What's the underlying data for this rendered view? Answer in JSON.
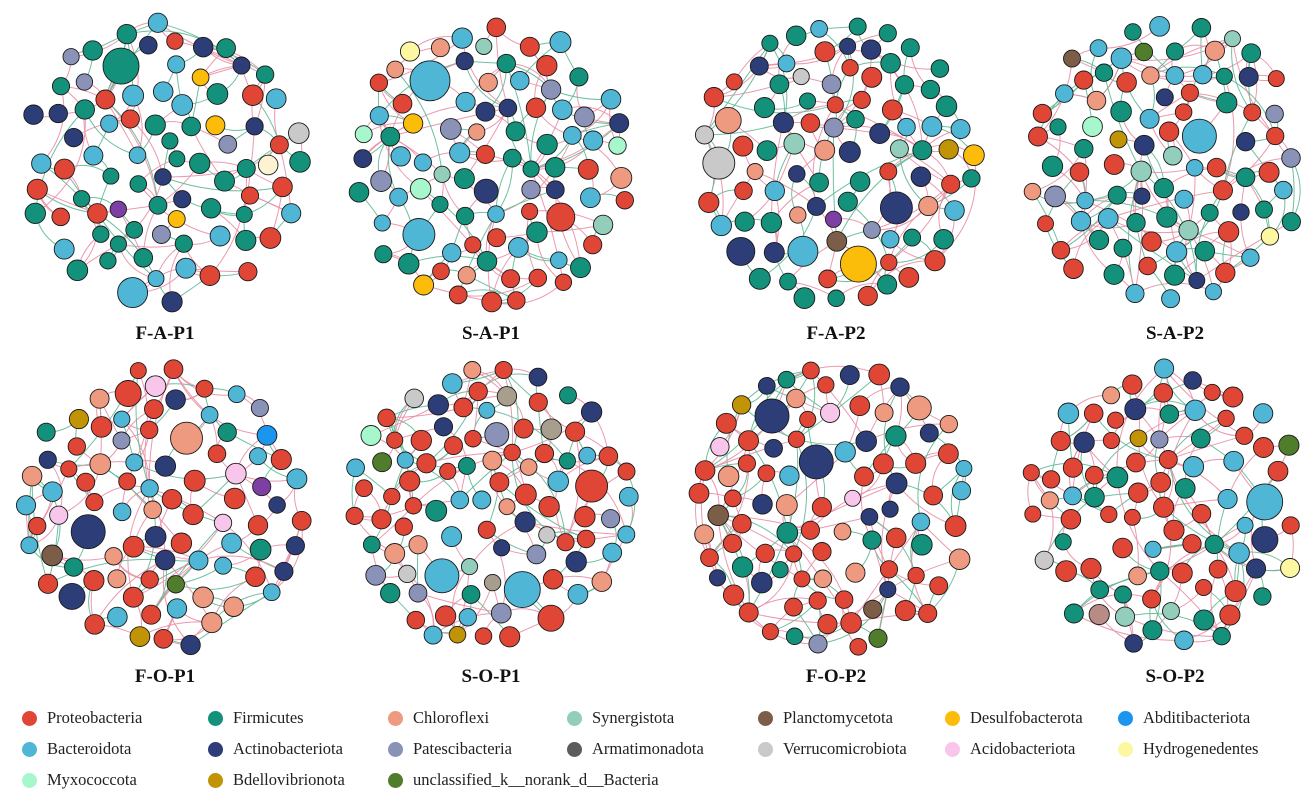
{
  "colors": {
    "Proteobacteria": "#e04636",
    "Firmicutes": "#13917a",
    "Chloroflexi": "#ee9a80",
    "Synergistota": "#93cdbc",
    "Planctomycetota": "#7c5d47",
    "Desulfobacterota": "#fbbd0a",
    "Abditibacteriota": "#1c95ee",
    "Bacteroidota": "#4fb6d6",
    "Actinobacteriota": "#2d3d78",
    "Patescibacteria": "#8a93b7",
    "Armatimonadota": "#5c5c5c",
    "Verrucomicrobiota": "#c9c9c9",
    "Acidobacteriota": "#f7c6ea",
    "Hydrogenedentes": "#fcf7a0",
    "Myxococcota": "#a7f7cd",
    "Bdellovibrionota": "#c19405",
    "unclassified_k__norank_d__Bacteria": "#4f7d2c",
    "others": "#7e3fa5",
    "cream": "#fdf2d2",
    "taupe": "#a89e8e",
    "mauve": "#b98b85",
    "edge_positive": "#e98ea6",
    "edge_negative": "#5fb996"
  },
  "legend": [
    {
      "name": "Proteobacteria",
      "color_key": "Proteobacteria"
    },
    {
      "name": "Firmicutes",
      "color_key": "Firmicutes"
    },
    {
      "name": "Chloroflexi",
      "color_key": "Chloroflexi"
    },
    {
      "name": "Synergistota",
      "color_key": "Synergistota"
    },
    {
      "name": "Planctomycetota",
      "color_key": "Planctomycetota"
    },
    {
      "name": "Desulfobacterota",
      "color_key": "Desulfobacterota"
    },
    {
      "name": "Abditibacteriota",
      "color_key": "Abditibacteriota"
    },
    {
      "name": "Bacteroidota",
      "color_key": "Bacteroidota"
    },
    {
      "name": "Actinobacteriota",
      "color_key": "Actinobacteriota"
    },
    {
      "name": "Patescibacteria",
      "color_key": "Patescibacteria"
    },
    {
      "name": "Armatimonadota",
      "color_key": "Armatimonadota"
    },
    {
      "name": "Verrucomicrobiota",
      "color_key": "Verrucomicrobiota"
    },
    {
      "name": "Acidobacteriota",
      "color_key": "Acidobacteriota"
    },
    {
      "name": "Hydrogenedentes",
      "color_key": "Hydrogenedentes"
    },
    {
      "name": "Myxococcota",
      "color_key": "Myxococcota"
    },
    {
      "name": "Bdellovibrionota",
      "color_key": "Bdellovibrionota"
    },
    {
      "name": "unclassified_k__norank_d__Bacteria",
      "color_key": "unclassified_k__norank_d__Bacteria"
    }
  ],
  "networks": [
    {
      "label": "F-A-P1",
      "mix": {
        "Firmicutes": 30,
        "Bacteroidota": 15,
        "Proteobacteria": 14,
        "Actinobacteriota": 10,
        "Patescibacteria": 4,
        "Desulfobacterota": 3,
        "Verrucomicrobiota": 1,
        "cream": 1,
        "others": 1
      },
      "big": [
        {
          "ck": "Firmicutes",
          "r": 18
        },
        {
          "ck": "Bacteroidota",
          "r": 15
        }
      ]
    },
    {
      "label": "S-A-P1",
      "mix": {
        "Bacteroidota": 20,
        "Firmicutes": 18,
        "Proteobacteria": 20,
        "Actinobacteriota": 8,
        "Chloroflexi": 6,
        "Patescibacteria": 5,
        "Synergistota": 3,
        "Myxococcota": 3,
        "Desulfobacterota": 2,
        "Hydrogenedentes": 1
      },
      "big": [
        {
          "ck": "Bacteroidota",
          "r": 20
        },
        {
          "ck": "Bacteroidota",
          "r": 16
        },
        {
          "ck": "Proteobacteria",
          "r": 14
        },
        {
          "ck": "Actinobacteriota",
          "r": 12
        }
      ]
    },
    {
      "label": "F-A-P2",
      "mix": {
        "Firmicutes": 30,
        "Proteobacteria": 20,
        "Bacteroidota": 10,
        "Actinobacteriota": 10,
        "Chloroflexi": 4,
        "Patescibacteria": 3,
        "Synergistota": 2,
        "Verrucomicrobiota": 2,
        "Planctomycetota": 1,
        "Desulfobacterota": 2,
        "Bdellovibrionota": 1,
        "others": 1
      },
      "big": [
        {
          "ck": "Desulfobacterota",
          "r": 18
        },
        {
          "ck": "Actinobacteriota",
          "r": 16
        },
        {
          "ck": "Verrucomicrobiota",
          "r": 16
        },
        {
          "ck": "Bacteroidota",
          "r": 15
        },
        {
          "ck": "Chloroflexi",
          "r": 13
        },
        {
          "ck": "Actinobacteriota",
          "r": 14
        }
      ]
    },
    {
      "label": "S-A-P2",
      "mix": {
        "Firmicutes": 25,
        "Proteobacteria": 22,
        "Bacteroidota": 18,
        "Actinobacteriota": 8,
        "Synergistota": 5,
        "Chloroflexi": 4,
        "Patescibacteria": 3,
        "Planctomycetota": 1,
        "unclassified_k__norank_d__Bacteria": 1,
        "Hydrogenedentes": 1,
        "Bdellovibrionota": 1,
        "Myxococcota": 1
      },
      "big": [
        {
          "ck": "Bacteroidota",
          "r": 17
        }
      ]
    },
    {
      "label": "F-O-P1",
      "mix": {
        "Proteobacteria": 35,
        "Bacteroidota": 18,
        "Chloroflexi": 10,
        "Actinobacteriota": 10,
        "Firmicutes": 4,
        "Acidobacteriota": 4,
        "Bdellovibrionota": 2,
        "Patescibacteria": 2,
        "Planctomycetota": 1,
        "unclassified_k__norank_d__Bacteria": 1,
        "Abditibacteriota": 1,
        "others": 1
      },
      "big": [
        {
          "ck": "Chloroflexi",
          "r": 16
        },
        {
          "ck": "Actinobacteriota",
          "r": 17
        },
        {
          "ck": "Actinobacteriota",
          "r": 13
        },
        {
          "ck": "Proteobacteria",
          "r": 13
        }
      ]
    },
    {
      "label": "S-O-P1",
      "mix": {
        "Proteobacteria": 40,
        "Bacteroidota": 15,
        "Chloroflexi": 8,
        "Actinobacteriota": 8,
        "Firmicutes": 8,
        "Patescibacteria": 5,
        "taupe": 3,
        "Verrucomicrobiota": 3,
        "Bdellovibrionota": 1,
        "unclassified_k__norank_d__Bacteria": 1,
        "Abditibacteriota": 1,
        "Myxococcota": 1,
        "Synergistota": 1
      },
      "big": [
        {
          "ck": "Bacteroidota",
          "r": 18
        },
        {
          "ck": "Proteobacteria",
          "r": 16
        },
        {
          "ck": "Bacteroidota",
          "r": 17
        },
        {
          "ck": "Proteobacteria",
          "r": 13
        },
        {
          "ck": "Patescibacteria",
          "r": 12
        }
      ]
    },
    {
      "label": "F-O-P2",
      "mix": {
        "Proteobacteria": 45,
        "Actinobacteriota": 15,
        "Chloroflexi": 10,
        "Firmicutes": 8,
        "Bacteroidota": 6,
        "Acidobacteriota": 5,
        "Planctomycetota": 2,
        "Patescibacteria": 2,
        "Bdellovibrionota": 1,
        "unclassified_k__norank_d__Bacteria": 1
      },
      "big": [
        {
          "ck": "Actinobacteriota",
          "r": 17
        },
        {
          "ck": "Actinobacteriota",
          "r": 17
        },
        {
          "ck": "Chloroflexi",
          "r": 12
        }
      ]
    },
    {
      "label": "S-O-P2",
      "mix": {
        "Proteobacteria": 40,
        "Firmicutes": 15,
        "Bacteroidota": 12,
        "Actinobacteriota": 6,
        "Chloroflexi": 3,
        "Synergistota": 2,
        "Patescibacteria": 1,
        "Verrucomicrobiota": 1,
        "Bdellovibrionota": 1,
        "Hydrogenedentes": 1,
        "mauve": 1,
        "unclassified_k__norank_d__Bacteria": 1
      },
      "big": [
        {
          "ck": "Bacteroidota",
          "r": 18
        },
        {
          "ck": "Actinobacteriota",
          "r": 13
        }
      ]
    }
  ]
}
